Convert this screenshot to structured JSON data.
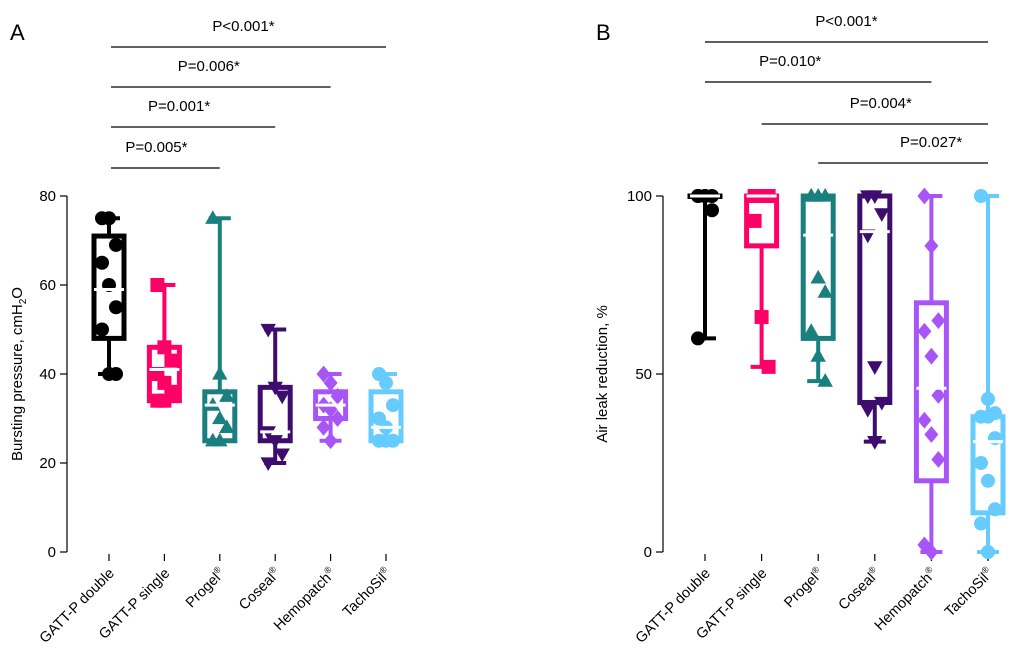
{
  "chart_data": [
    {
      "type": "boxplot",
      "panel": "A",
      "ylabel": "Bursting pressure, cmH",
      "ylabel_sub": "2",
      "ylabel_tail": "O",
      "ylim": [
        0,
        80
      ],
      "yticks": [
        0,
        20,
        40,
        60,
        80
      ],
      "categories": [
        {
          "base": "GATT-P double",
          "sup": ""
        },
        {
          "base": "GATT-P single",
          "sup": ""
        },
        {
          "base": "Progel",
          "sup": "®"
        },
        {
          "base": "Coseal",
          "sup": "®"
        },
        {
          "base": "Hemopatch",
          "sup": "®"
        },
        {
          "base": "TachoSil",
          "sup": "®"
        }
      ],
      "series": [
        {
          "color": "#000000",
          "marker": "circle",
          "min": 40,
          "q1": 48,
          "median": 59,
          "q3": 71,
          "max": 75,
          "points": [
            75,
            75,
            69,
            65,
            60,
            55,
            50,
            40,
            40
          ]
        },
        {
          "color": "#ff0066",
          "marker": "square",
          "min": 34,
          "q1": 34,
          "median": 41,
          "q3": 46,
          "max": 60,
          "points": [
            60,
            46,
            43,
            40,
            38,
            36,
            34,
            34
          ]
        },
        {
          "color": "#1a7f7f",
          "marker": "triangle-up",
          "min": 25,
          "q1": 25,
          "median": 33,
          "q3": 36,
          "max": 75,
          "points": [
            75,
            40,
            35,
            33,
            30,
            28,
            25,
            25
          ]
        },
        {
          "color": "#3d0c6e",
          "marker": "triangle-down",
          "min": 20,
          "q1": 25,
          "median": 27,
          "q3": 37,
          "max": 50,
          "points": [
            50,
            37,
            35,
            27,
            25,
            22,
            20
          ]
        },
        {
          "color": "#a855f7",
          "marker": "diamond",
          "min": 25,
          "q1": 30,
          "median": 33,
          "q3": 36,
          "max": 40,
          "points": [
            40,
            38,
            35,
            33,
            32,
            30,
            28,
            25
          ]
        },
        {
          "color": "#66ccff",
          "marker": "circle",
          "min": 25,
          "q1": 25,
          "median": 28,
          "q3": 36,
          "max": 40,
          "points": [
            40,
            38,
            33,
            30,
            28,
            25,
            25,
            25
          ]
        }
      ],
      "comparisons": [
        {
          "label": "P<0.001*",
          "from": 0,
          "to": 5
        },
        {
          "label": "P=0.006*",
          "from": 0,
          "to": 4
        },
        {
          "label": "P=0.001*",
          "from": 0,
          "to": 3
        },
        {
          "label": "P=0.005*",
          "from": 0,
          "to": 2
        }
      ]
    },
    {
      "type": "boxplot",
      "panel": "B",
      "ylabel": "Air leak reduction, %",
      "ylim": [
        0,
        100
      ],
      "yticks": [
        0,
        50,
        100
      ],
      "categories": [
        {
          "base": "GATT-P double",
          "sup": ""
        },
        {
          "base": "GATT-P single",
          "sup": ""
        },
        {
          "base": "Progel",
          "sup": "®"
        },
        {
          "base": "Coseal",
          "sup": "®"
        },
        {
          "base": "Hemopatch",
          "sup": "®"
        },
        {
          "base": "TachoSil",
          "sup": "®"
        }
      ],
      "series": [
        {
          "color": "#000000",
          "marker": "circle",
          "min": 60,
          "q1": 100,
          "median": 100,
          "q3": 100,
          "max": 100,
          "points": [
            100,
            100,
            100,
            100,
            100,
            96,
            60
          ]
        },
        {
          "color": "#ff0066",
          "marker": "square",
          "min": 52,
          "q1": 86,
          "median": 100,
          "q3": 100,
          "max": 100,
          "points": [
            100,
            100,
            100,
            93,
            66,
            52
          ]
        },
        {
          "color": "#1a7f7f",
          "marker": "triangle-up",
          "min": 48,
          "q1": 60,
          "median": 89,
          "q3": 100,
          "max": 100,
          "points": [
            100,
            100,
            100,
            100,
            77,
            73,
            62,
            55,
            48
          ]
        },
        {
          "color": "#3d0c6e",
          "marker": "triangle-down",
          "min": 31,
          "q1": 42,
          "median": 90,
          "q3": 100,
          "max": 100,
          "points": [
            100,
            100,
            95,
            89,
            52,
            42,
            40,
            31
          ]
        },
        {
          "color": "#a855f7",
          "marker": "diamond",
          "min": 0,
          "q1": 20,
          "median": 46,
          "q3": 70,
          "max": 100,
          "points": [
            100,
            86,
            65,
            62,
            55,
            44,
            37,
            33,
            26,
            2,
            0
          ]
        },
        {
          "color": "#66ccff",
          "marker": "circle",
          "min": 0,
          "q1": 11,
          "median": 31,
          "q3": 38,
          "max": 100,
          "points": [
            100,
            43,
            39,
            38,
            38,
            32,
            25,
            20,
            12,
            8,
            0
          ]
        }
      ],
      "comparisons": [
        {
          "label": "P<0.001*",
          "from": 0,
          "to": 5
        },
        {
          "label": "P=0.010*",
          "from": 0,
          "to": 4
        },
        {
          "label": "P=0.004*",
          "from": 1,
          "to": 5
        },
        {
          "label": "P=0.027*",
          "from": 2,
          "to": 5
        }
      ]
    }
  ]
}
